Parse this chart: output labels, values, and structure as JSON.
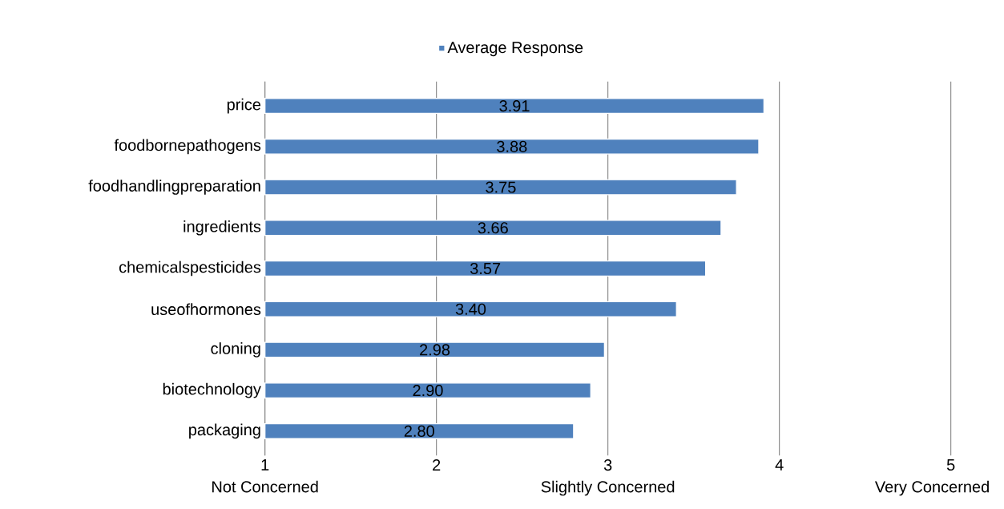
{
  "chart_data": {
    "type": "bar",
    "orientation": "horizontal",
    "categories": [
      "price",
      "foodbornepathogens",
      "foodhandlingpreparation",
      "ingredients",
      "chemicalspesticides",
      "useofhormones",
      "cloning",
      "biotechnology",
      "packaging"
    ],
    "series": [
      {
        "name": "Average Response",
        "color": "#4f81bd",
        "values": [
          3.91,
          3.88,
          3.75,
          3.66,
          3.57,
          3.4,
          2.98,
          2.9,
          2.8
        ],
        "value_labels": [
          "3.91",
          "3.88",
          "3.75",
          "3.66",
          "3.57",
          "3.40",
          "2.98",
          "2.90",
          "2.80"
        ]
      }
    ],
    "xlim": [
      1,
      5
    ],
    "xticks": [
      1,
      2,
      3,
      4,
      5
    ],
    "grid": "x",
    "legend": "top",
    "annotations": [
      "Not Concerned",
      "Slightly Concerned",
      "Very Concerned"
    ]
  }
}
